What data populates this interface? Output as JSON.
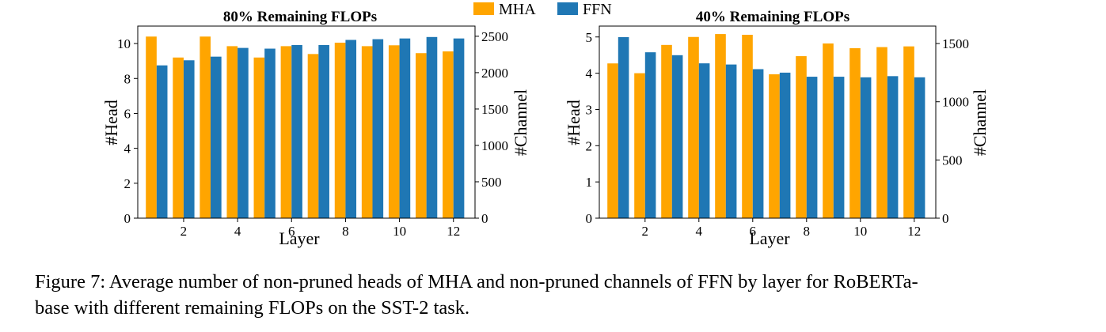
{
  "colors": {
    "mha": "#FFA500",
    "ffn": "#1F77B4"
  },
  "legend": [
    "MHA",
    "FFN"
  ],
  "chart_data": [
    {
      "type": "bar",
      "title": "80% Remaining FLOPs",
      "xlabel": "Layer",
      "ylabel_left": "#Head",
      "ylabel_right": "#Channel",
      "x": [
        1,
        2,
        3,
        4,
        5,
        6,
        7,
        8,
        9,
        10,
        11,
        12
      ],
      "x_ticks": [
        2,
        4,
        6,
        8,
        10,
        12
      ],
      "ylim_left": [
        0,
        11
      ],
      "ylim_right": [
        0,
        2640
      ],
      "yticks_left": [
        0,
        2,
        4,
        6,
        8,
        10
      ],
      "yticks_right": [
        0,
        500,
        1000,
        1500,
        2000,
        2500
      ],
      "series": [
        {
          "name": "MHA",
          "axis": "left",
          "values": [
            10.4,
            9.2,
            10.4,
            9.85,
            9.2,
            9.85,
            9.4,
            10.05,
            9.85,
            9.9,
            9.45,
            9.55
          ]
        },
        {
          "name": "FFN",
          "axis": "right",
          "values": [
            2100,
            2170,
            2220,
            2340,
            2330,
            2380,
            2380,
            2450,
            2460,
            2470,
            2490,
            2470
          ]
        }
      ]
    },
    {
      "type": "bar",
      "title": "40% Remaining FLOPs",
      "xlabel": "Layer",
      "ylabel_left": "#Head",
      "ylabel_right": "#Channel",
      "x": [
        1,
        2,
        3,
        4,
        5,
        6,
        7,
        8,
        9,
        10,
        11,
        12
      ],
      "x_ticks": [
        2,
        4,
        6,
        8,
        10,
        12
      ],
      "ylim_left": [
        0,
        5.3
      ],
      "ylim_right": [
        0,
        1650
      ],
      "yticks_left": [
        0,
        1,
        2,
        3,
        4,
        5
      ],
      "yticks_right": [
        0,
        500,
        1000,
        1500
      ],
      "series": [
        {
          "name": "MHA",
          "axis": "left",
          "values": [
            4.27,
            4.0,
            4.78,
            5.0,
            5.08,
            5.06,
            3.97,
            4.47,
            4.82,
            4.69,
            4.72,
            4.74
          ]
        },
        {
          "name": "FFN",
          "axis": "right",
          "values": [
            1555,
            1425,
            1400,
            1330,
            1320,
            1280,
            1250,
            1215,
            1215,
            1210,
            1220,
            1210
          ]
        }
      ]
    }
  ],
  "caption": {
    "line1": "Figure 7: Average number of non-pruned heads of MHA and non-pruned channels of FFN by layer for RoBERTa-",
    "line2": "base with different remaining FLOPs on the SST-2 task."
  }
}
